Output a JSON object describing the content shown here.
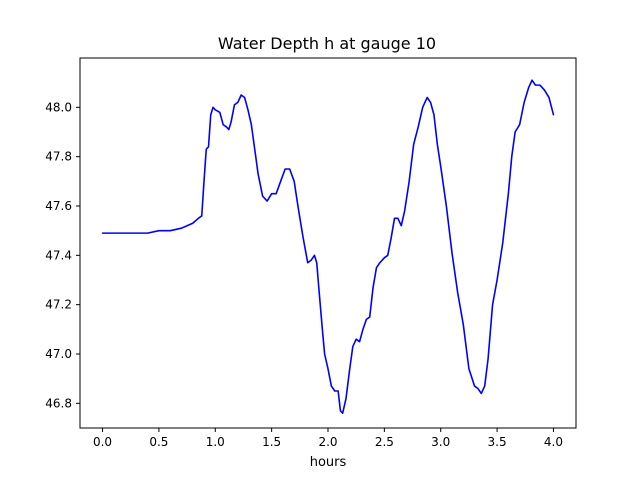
{
  "chart_data": {
    "type": "line",
    "title": "Water Depth h at gauge 10",
    "xlabel": "hours",
    "ylabel": "",
    "xlim": [
      -0.2,
      4.2
    ],
    "ylim": [
      46.7,
      48.2
    ],
    "xticks": [
      0.0,
      0.5,
      1.0,
      1.5,
      2.0,
      2.5,
      3.0,
      3.5,
      4.0
    ],
    "xtick_labels": [
      "0.0",
      "0.5",
      "1.0",
      "1.5",
      "2.0",
      "2.5",
      "3.0",
      "3.5",
      "4.0"
    ],
    "yticks": [
      46.8,
      47.0,
      47.2,
      47.4,
      47.6,
      47.8,
      48.0
    ],
    "ytick_labels": [
      "46.8",
      "47.0",
      "47.2",
      "47.4",
      "47.6",
      "47.8",
      "48.0"
    ],
    "grid": false,
    "series": [
      {
        "color": "#0000ff",
        "x": [
          0.0,
          0.1,
          0.2,
          0.3,
          0.4,
          0.5,
          0.6,
          0.7,
          0.75,
          0.8,
          0.85,
          0.88,
          0.9,
          0.92,
          0.94,
          0.96,
          0.98,
          1.0,
          1.04,
          1.07,
          1.1,
          1.12,
          1.14,
          1.17,
          1.2,
          1.23,
          1.26,
          1.29,
          1.32,
          1.35,
          1.38,
          1.42,
          1.46,
          1.5,
          1.54,
          1.58,
          1.62,
          1.66,
          1.7,
          1.74,
          1.78,
          1.82,
          1.85,
          1.88,
          1.9,
          1.92,
          1.95,
          1.97,
          2.0,
          2.03,
          2.06,
          2.09,
          2.11,
          2.13,
          2.16,
          2.19,
          2.22,
          2.25,
          2.28,
          2.31,
          2.34,
          2.37,
          2.4,
          2.43,
          2.46,
          2.5,
          2.53,
          2.56,
          2.59,
          2.62,
          2.65,
          2.68,
          2.72,
          2.76,
          2.8,
          2.84,
          2.88,
          2.91,
          2.94,
          2.97,
          3.0,
          3.05,
          3.1,
          3.15,
          3.2,
          3.25,
          3.3,
          3.33,
          3.36,
          3.39,
          3.42,
          3.46,
          3.5,
          3.55,
          3.6,
          3.63,
          3.66,
          3.7,
          3.74,
          3.78,
          3.81,
          3.84,
          3.88,
          3.92,
          3.96,
          4.0
        ],
        "y": [
          47.49,
          47.49,
          47.49,
          47.49,
          47.49,
          47.5,
          47.5,
          47.51,
          47.52,
          47.53,
          47.55,
          47.56,
          47.7,
          47.83,
          47.84,
          47.97,
          48.0,
          47.99,
          47.98,
          47.93,
          47.92,
          47.91,
          47.94,
          48.01,
          48.02,
          48.05,
          48.04,
          47.99,
          47.93,
          47.83,
          47.73,
          47.64,
          47.62,
          47.65,
          47.65,
          47.7,
          47.75,
          47.75,
          47.7,
          47.58,
          47.47,
          47.37,
          47.38,
          47.4,
          47.37,
          47.26,
          47.1,
          47.0,
          46.94,
          46.87,
          46.85,
          46.85,
          46.77,
          46.76,
          46.82,
          46.93,
          47.03,
          47.06,
          47.05,
          47.1,
          47.14,
          47.15,
          47.27,
          47.35,
          47.37,
          47.39,
          47.4,
          47.47,
          47.55,
          47.55,
          47.52,
          47.58,
          47.7,
          47.85,
          47.92,
          48.0,
          48.04,
          48.02,
          47.97,
          47.85,
          47.76,
          47.6,
          47.41,
          47.25,
          47.12,
          46.94,
          46.87,
          46.86,
          46.84,
          46.87,
          46.98,
          47.2,
          47.3,
          47.45,
          47.65,
          47.8,
          47.9,
          47.93,
          48.02,
          48.08,
          48.11,
          48.09,
          48.09,
          48.07,
          48.04,
          47.97
        ]
      }
    ]
  }
}
